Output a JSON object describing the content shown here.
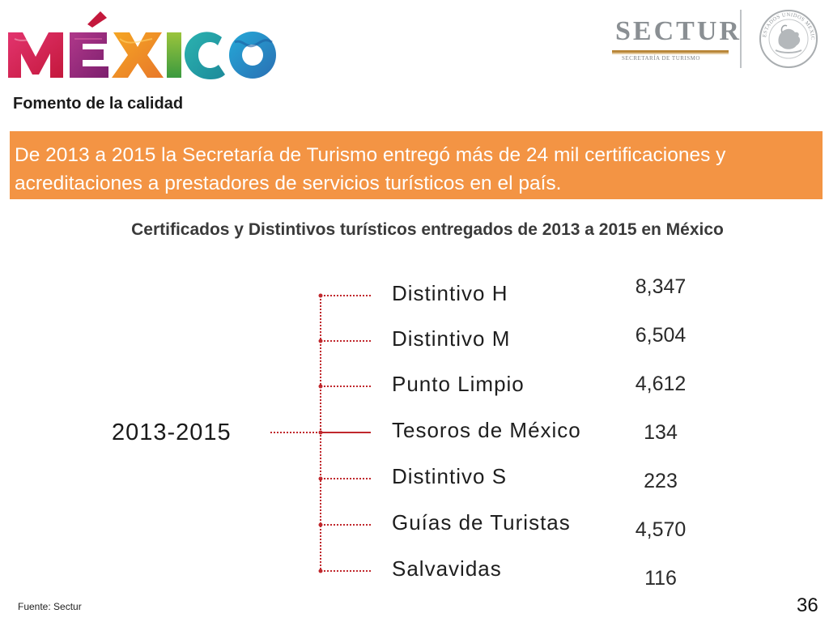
{
  "brand": {
    "logo_text": "MÉXICO",
    "sectur_name": "SECTUR",
    "sectur_subtitle": "SECRETARÍA DE TURISMO",
    "seal_text": "ESTADOS UNIDOS MEXICANOS"
  },
  "header": {
    "subtitle": "Fomento de la calidad"
  },
  "banner": {
    "text": "De 2013 a 2015 la Secretaría de Turismo entregó más de 24 mil certificaciones y acreditaciones a prestadores de servicios turísticos en el país."
  },
  "chart": {
    "title": "Certificados y Distintivos turísticos entregados de 2013 a 2015 en México",
    "root": "2013-2015",
    "items": [
      {
        "label": "Distintivo H",
        "value": "8,347"
      },
      {
        "label": "Distintivo M",
        "value": "6,504"
      },
      {
        "label": "Punto Limpio",
        "value": "4,612"
      },
      {
        "label": "Tesoros de México",
        "value": "134"
      },
      {
        "label": "Distintivo S",
        "value": "223"
      },
      {
        "label": "Guías de Turistas",
        "value": "4,570"
      },
      {
        "label": "Salvavidas",
        "value": "116"
      }
    ]
  },
  "footer": {
    "source": "Fuente: Sectur",
    "page": "36"
  },
  "colors": {
    "banner": "#f39444",
    "connector": "#c0282d"
  }
}
